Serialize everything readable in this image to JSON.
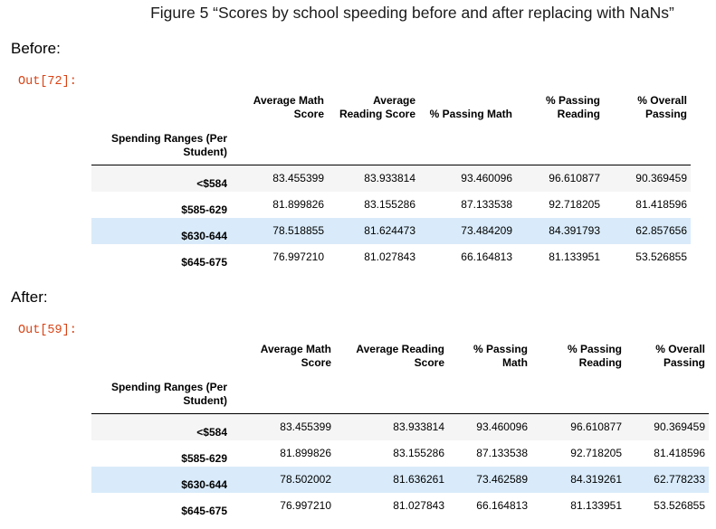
{
  "figure_title": "Figure 5 “Scores by school speeding before and after replacing with NaNs”",
  "before": {
    "section_label": "Before:",
    "out_prompt": "Out[72]:",
    "columns": [
      "Average Math Score",
      "Average Reading Score",
      "% Passing Math",
      "% Passing Reading",
      "% Overall Passing"
    ],
    "index_name": "Spending Ranges (Per Student)",
    "rows": [
      {
        "label": "<$584",
        "values": [
          "83.455399",
          "83.933814",
          "93.460096",
          "96.610877",
          "90.369459"
        ]
      },
      {
        "label": "$585-629",
        "values": [
          "81.899826",
          "83.155286",
          "87.133538",
          "92.718205",
          "81.418596"
        ]
      },
      {
        "label": "$630-644",
        "values": [
          "78.518855",
          "81.624473",
          "73.484209",
          "84.391793",
          "62.857656"
        ]
      },
      {
        "label": "$645-675",
        "values": [
          "76.997210",
          "81.027843",
          "66.164813",
          "81.133951",
          "53.526855"
        ]
      }
    ]
  },
  "after": {
    "section_label": "After:",
    "out_prompt": "Out[59]:",
    "columns": [
      "Average Math Score",
      "Average Reading Score",
      "% Passing Math",
      "% Passing Reading",
      "% Overall Passing"
    ],
    "index_name": "Spending Ranges (Per Student)",
    "rows": [
      {
        "label": "<$584",
        "values": [
          "83.455399",
          "83.933814",
          "93.460096",
          "96.610877",
          "90.369459"
        ]
      },
      {
        "label": "$585-629",
        "values": [
          "81.899826",
          "83.155286",
          "87.133538",
          "92.718205",
          "81.418596"
        ]
      },
      {
        "label": "$630-644",
        "values": [
          "78.502002",
          "81.636261",
          "73.462589",
          "84.319261",
          "62.778233"
        ]
      },
      {
        "label": "$645-675",
        "values": [
          "76.997210",
          "81.027843",
          "66.164813",
          "81.133951",
          "53.526855"
        ]
      }
    ]
  },
  "colors": {
    "prompt": "#d84315",
    "row_stripe": "#f5f5f5",
    "row_highlight": "#d9ebfa"
  }
}
